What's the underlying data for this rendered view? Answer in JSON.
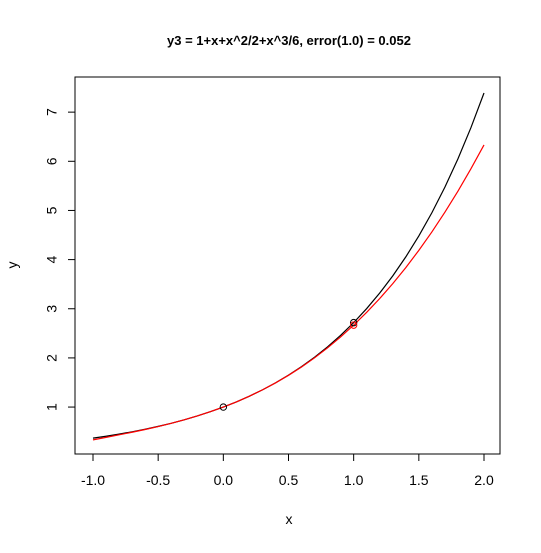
{
  "chart_data": {
    "type": "line",
    "title": "y3 = 1+x+x^2/2+x^3/6, error(1.0) =  0.052",
    "xlabel": "x",
    "ylabel": "y",
    "xlim": [
      -1.0,
      2.0
    ],
    "ylim": [
      0.33,
      7.43
    ],
    "xticks": [
      -1.0,
      -0.5,
      0.0,
      0.5,
      1.0,
      1.5,
      2.0
    ],
    "xtick_labels": [
      "-1.0",
      "-0.5",
      "0.0",
      "0.5",
      "1.0",
      "1.5",
      "2.0"
    ],
    "yticks": [
      1,
      2,
      3,
      4,
      5,
      6,
      7
    ],
    "ytick_labels": [
      "1",
      "2",
      "3",
      "4",
      "5",
      "6",
      "7"
    ],
    "grid": false,
    "series": [
      {
        "color": "#000000",
        "x": [
          -1.0,
          -0.9,
          -0.8,
          -0.7,
          -0.6,
          -0.5,
          -0.4,
          -0.3,
          -0.2,
          -0.1,
          0.0,
          0.1,
          0.2,
          0.3,
          0.4,
          0.5,
          0.6,
          0.7,
          0.8,
          0.9,
          1.0,
          1.1,
          1.2,
          1.3,
          1.4,
          1.5,
          1.6,
          1.7,
          1.8,
          1.9,
          2.0
        ],
        "y": [
          0.368,
          0.407,
          0.449,
          0.497,
          0.549,
          0.607,
          0.67,
          0.741,
          0.819,
          0.905,
          1.0,
          1.105,
          1.221,
          1.35,
          1.492,
          1.649,
          1.822,
          2.014,
          2.226,
          2.46,
          2.718,
          3.004,
          3.32,
          3.669,
          4.055,
          4.482,
          4.953,
          5.474,
          6.05,
          6.686,
          7.389
        ]
      },
      {
        "color": "#ff0000",
        "x": [
          -1.0,
          -0.9,
          -0.8,
          -0.7,
          -0.6,
          -0.5,
          -0.4,
          -0.3,
          -0.2,
          -0.1,
          0.0,
          0.1,
          0.2,
          0.3,
          0.4,
          0.5,
          0.6,
          0.7,
          0.8,
          0.9,
          1.0,
          1.1,
          1.2,
          1.3,
          1.4,
          1.5,
          1.6,
          1.7,
          1.8,
          1.9,
          2.0
        ],
        "y": [
          0.333,
          0.384,
          0.435,
          0.488,
          0.544,
          0.604,
          0.669,
          0.741,
          0.819,
          0.905,
          1.0,
          1.105,
          1.221,
          1.35,
          1.491,
          1.646,
          1.816,
          2.002,
          2.205,
          2.427,
          2.667,
          2.927,
          3.208,
          3.511,
          3.837,
          4.188,
          4.563,
          4.964,
          5.392,
          5.849,
          6.333
        ]
      }
    ],
    "points": [
      {
        "x": 0.0,
        "y": 1.0,
        "color": "#000000"
      },
      {
        "x": 1.0,
        "y": 2.718,
        "color": "#000000"
      },
      {
        "x": 1.0,
        "y": 2.667,
        "color": "#ff0000"
      }
    ]
  }
}
